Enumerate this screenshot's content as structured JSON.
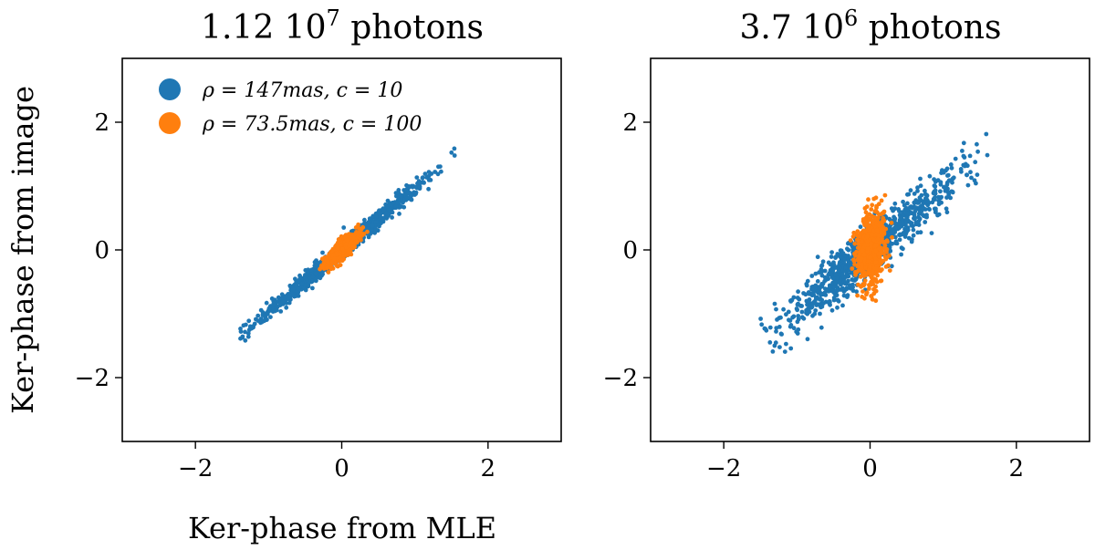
{
  "chart_data": [
    {
      "type": "scatter",
      "title": "1.12 10",
      "title_exponent": "7",
      "title_suffix": " photons",
      "xlabel": "Ker-phase from MLE",
      "ylabel": "Ker-phase from image",
      "xlim": [
        -3,
        3
      ],
      "ylim": [
        -3,
        3
      ],
      "xticks": [
        -2,
        0,
        2
      ],
      "yticks": [
        -2,
        0,
        2
      ],
      "xtick_labels": [
        "−2",
        "0",
        "2"
      ],
      "ytick_labels": [
        "−2",
        "0",
        "2"
      ],
      "grid": false,
      "legend": {
        "placement": "top-left",
        "entries": [
          "ρ = 147mas,  c = 10",
          "ρ = 73.5mas, c = 100"
        ]
      },
      "series": [
        {
          "name": "ρ = 147mas,  c = 10",
          "color": "#1f77b4",
          "distribution": {
            "n": 900,
            "x_mean": 0,
            "x_sd": 0.6,
            "x_range": [
              -1.4,
              1.6
            ],
            "slope": 0.97,
            "y_sd": 0.07,
            "seed": 11
          }
        },
        {
          "name": "ρ = 73.5mas, c = 100",
          "color": "#ff7f0e",
          "distribution": {
            "n": 700,
            "x_mean": 0,
            "x_sd": 0.11,
            "x_range": [
              -0.3,
              0.35
            ],
            "slope": 0.95,
            "y_sd": 0.07,
            "seed": 23
          }
        }
      ]
    },
    {
      "type": "scatter",
      "title": "3.7 10",
      "title_exponent": "6",
      "title_suffix": " photons",
      "xlabel": "",
      "ylabel": "",
      "xlim": [
        -3,
        3
      ],
      "ylim": [
        -3,
        3
      ],
      "xticks": [
        -2,
        0,
        2
      ],
      "yticks": [
        -2,
        0,
        2
      ],
      "xtick_labels": [
        "−2",
        "0",
        "2"
      ],
      "ytick_labels": [
        "−2",
        "0",
        "2"
      ],
      "grid": false,
      "series": [
        {
          "color": "#1f77b4",
          "distribution": {
            "n": 900,
            "x_mean": 0,
            "x_sd": 0.6,
            "x_range": [
              -1.5,
              1.7
            ],
            "slope": 0.95,
            "y_sd": 0.2,
            "seed": 37
          }
        },
        {
          "color": "#ff7f0e",
          "distribution": {
            "n": 700,
            "x_mean": 0.02,
            "x_sd": 0.1,
            "x_range": [
              -0.3,
              0.35
            ],
            "slope": 0.6,
            "y_sd": 0.28,
            "seed": 53
          }
        }
      ]
    }
  ]
}
